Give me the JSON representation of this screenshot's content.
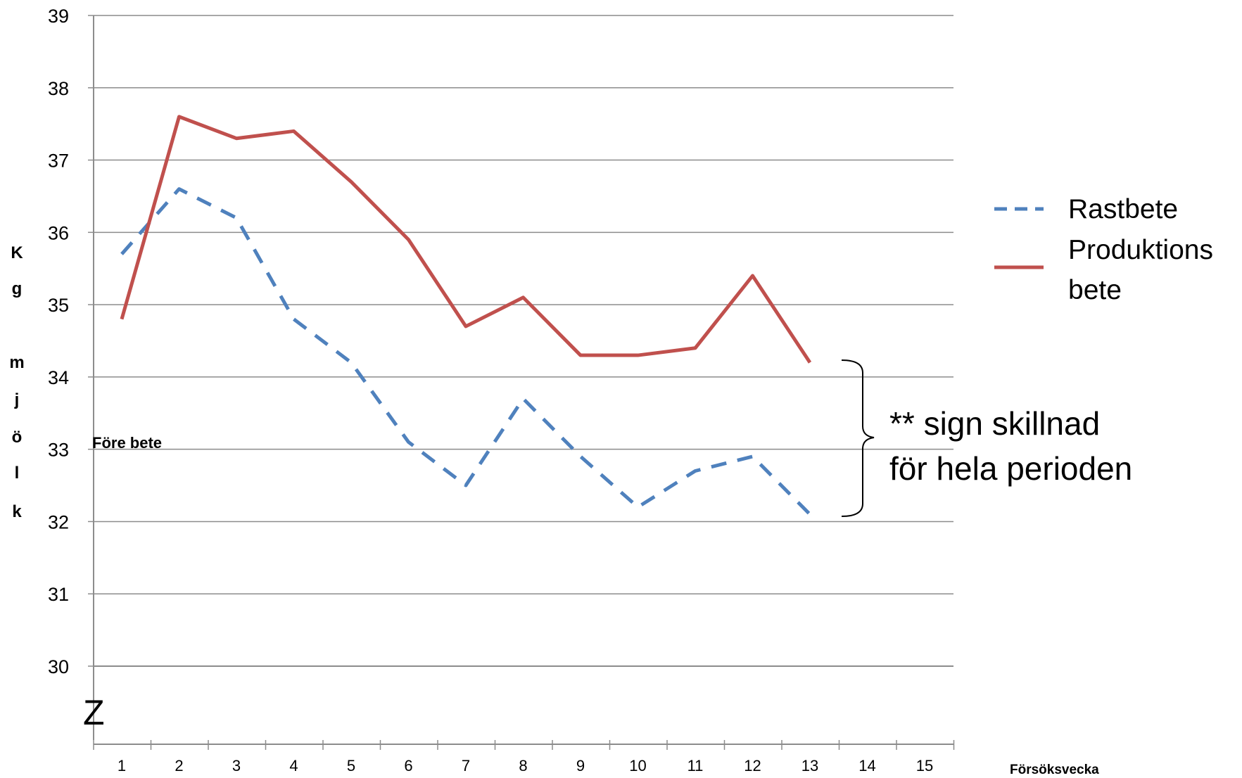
{
  "chart_data": {
    "type": "line",
    "x": [
      1,
      2,
      3,
      4,
      5,
      6,
      7,
      8,
      9,
      10,
      11,
      12,
      13
    ],
    "x_tick_labels": [
      "1",
      "2",
      "3",
      "4",
      "5",
      "6",
      "7",
      "8",
      "9",
      "10",
      "11",
      "12",
      "13",
      "14",
      "15"
    ],
    "y_tick_labels": [
      "30",
      "31",
      "32",
      "33",
      "34",
      "35",
      "36",
      "37",
      "38",
      "39"
    ],
    "ylim": [
      30,
      39
    ],
    "xlim": [
      1,
      15
    ],
    "grid": true,
    "legend_position": "right",
    "xlabel": "Försöksvecka",
    "ylabel_letters": [
      "K",
      "g",
      "m",
      "j",
      "ö",
      "l",
      "k"
    ],
    "series": [
      {
        "name": "Rastbete",
        "style": "dashed",
        "color": "#4F81BD",
        "values": [
          35.7,
          36.6,
          36.2,
          34.8,
          34.2,
          33.1,
          32.5,
          33.7,
          32.9,
          32.2,
          32.7,
          32.9,
          32.1
        ]
      },
      {
        "name_lines": [
          "Produktions",
          "bete"
        ],
        "style": "solid",
        "color": "#C0504D",
        "values": [
          34.8,
          37.6,
          37.3,
          37.4,
          36.7,
          35.9,
          34.7,
          35.1,
          34.3,
          34.3,
          34.4,
          35.4,
          34.2
        ]
      }
    ],
    "annotations": {
      "fore_bete": "Före bete",
      "significance_lines": [
        "** sign skillnad",
        "för hela perioden"
      ],
      "z_label": "Z"
    }
  }
}
